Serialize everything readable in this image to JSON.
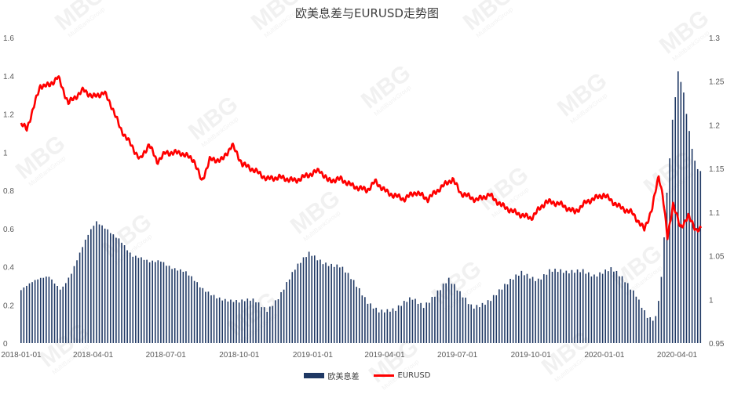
{
  "chart_data": {
    "type": "bar+line",
    "title": "欧美息差与EURUSD走势图",
    "x_ticks": [
      "2018-01-01",
      "2018-04-01",
      "2018-07-01",
      "2018-10-01",
      "2019-01-01",
      "2019-04-01",
      "2019-07-01",
      "2019-10-01",
      "2020-01-01",
      "2020-04-01"
    ],
    "y_left": {
      "ylim": [
        0,
        1.6
      ],
      "ticks": [
        "0",
        "0.2",
        "0.4",
        "0.6",
        "0.8",
        "1",
        "1.2",
        "1.4",
        "1.6"
      ]
    },
    "y_right": {
      "ylim": [
        0.95,
        1.3
      ],
      "ticks": [
        "0.95",
        "1",
        "1.05",
        "1.1",
        "1.15",
        "1.2",
        "1.25",
        "1.3"
      ]
    },
    "grid": false,
    "legend_position": "bottom",
    "colors": {
      "spread": "#1f3864",
      "eurusd": "#ff0000"
    },
    "series": [
      {
        "name": "欧美息差",
        "type": "bar",
        "axis": "left",
        "keypoints": [
          [
            "2018-01-01",
            0.28
          ],
          [
            "2018-01-20",
            0.32
          ],
          [
            "2018-02-05",
            0.35
          ],
          [
            "2018-02-20",
            0.29
          ],
          [
            "2018-03-05",
            0.37
          ],
          [
            "2018-03-25",
            0.55
          ],
          [
            "2018-04-05",
            0.63
          ],
          [
            "2018-04-20",
            0.6
          ],
          [
            "2018-05-05",
            0.55
          ],
          [
            "2018-05-20",
            0.45
          ],
          [
            "2018-06-10",
            0.42
          ],
          [
            "2018-06-25",
            0.44
          ],
          [
            "2018-07-10",
            0.4
          ],
          [
            "2018-07-25",
            0.37
          ],
          [
            "2018-08-15",
            0.28
          ],
          [
            "2018-09-10",
            0.24
          ],
          [
            "2018-10-01",
            0.21
          ],
          [
            "2018-10-20",
            0.22
          ],
          [
            "2018-11-05",
            0.18
          ],
          [
            "2018-11-20",
            0.25
          ],
          [
            "2018-12-10",
            0.38
          ],
          [
            "2018-12-28",
            0.47
          ],
          [
            "2019-01-15",
            0.43
          ],
          [
            "2019-02-05",
            0.4
          ],
          [
            "2019-02-20",
            0.32
          ],
          [
            "2019-03-10",
            0.22
          ],
          [
            "2019-03-25",
            0.18
          ],
          [
            "2019-04-15",
            0.17
          ],
          [
            "2019-05-05",
            0.23
          ],
          [
            "2019-05-20",
            0.2
          ],
          [
            "2019-06-05",
            0.27
          ],
          [
            "2019-06-20",
            0.33
          ],
          [
            "2019-07-05",
            0.25
          ],
          [
            "2019-07-20",
            0.19
          ],
          [
            "2019-08-10",
            0.23
          ],
          [
            "2019-09-01",
            0.3
          ],
          [
            "2019-09-20",
            0.37
          ],
          [
            "2019-10-10",
            0.34
          ],
          [
            "2019-10-25",
            0.38
          ],
          [
            "2019-11-15",
            0.36
          ],
          [
            "2019-12-05",
            0.39
          ],
          [
            "2019-12-20",
            0.36
          ],
          [
            "2020-01-10",
            0.38
          ],
          [
            "2020-01-25",
            0.33
          ],
          [
            "2020-02-10",
            0.26
          ],
          [
            "2020-02-25",
            0.14
          ],
          [
            "2020-03-05",
            0.12
          ],
          [
            "2020-03-12",
            0.3
          ],
          [
            "2020-03-20",
            0.8
          ],
          [
            "2020-03-27",
            1.18
          ],
          [
            "2020-04-03",
            1.43
          ],
          [
            "2020-04-10",
            1.3
          ],
          [
            "2020-04-17",
            1.1
          ],
          [
            "2020-04-24",
            0.95
          ],
          [
            "2020-05-01",
            0.9
          ]
        ]
      },
      {
        "name": "EURUSD",
        "type": "line",
        "axis": "right",
        "keypoints": [
          [
            "2018-01-01",
            1.201
          ],
          [
            "2018-01-08",
            1.195
          ],
          [
            "2018-01-25",
            1.245
          ],
          [
            "2018-02-05",
            1.245
          ],
          [
            "2018-02-16",
            1.255
          ],
          [
            "2018-03-01",
            1.225
          ],
          [
            "2018-03-20",
            1.24
          ],
          [
            "2018-04-01",
            1.232
          ],
          [
            "2018-04-15",
            1.237
          ],
          [
            "2018-04-25",
            1.22
          ],
          [
            "2018-05-05",
            1.196
          ],
          [
            "2018-05-15",
            1.182
          ],
          [
            "2018-05-30",
            1.16
          ],
          [
            "2018-06-10",
            1.178
          ],
          [
            "2018-06-20",
            1.158
          ],
          [
            "2018-07-01",
            1.168
          ],
          [
            "2018-07-20",
            1.168
          ],
          [
            "2018-08-05",
            1.16
          ],
          [
            "2018-08-15",
            1.135
          ],
          [
            "2018-08-25",
            1.16
          ],
          [
            "2018-09-10",
            1.16
          ],
          [
            "2018-09-22",
            1.177
          ],
          [
            "2018-10-05",
            1.155
          ],
          [
            "2018-10-20",
            1.148
          ],
          [
            "2018-11-05",
            1.138
          ],
          [
            "2018-11-20",
            1.14
          ],
          [
            "2018-12-10",
            1.136
          ],
          [
            "2018-12-25",
            1.142
          ],
          [
            "2019-01-10",
            1.148
          ],
          [
            "2019-01-20",
            1.136
          ],
          [
            "2019-02-05",
            1.138
          ],
          [
            "2019-02-20",
            1.13
          ],
          [
            "2019-03-10",
            1.125
          ],
          [
            "2019-03-20",
            1.135
          ],
          [
            "2019-04-05",
            1.122
          ],
          [
            "2019-04-25",
            1.115
          ],
          [
            "2019-05-10",
            1.123
          ],
          [
            "2019-05-25",
            1.115
          ],
          [
            "2019-06-10",
            1.128
          ],
          [
            "2019-06-25",
            1.138
          ],
          [
            "2019-07-05",
            1.122
          ],
          [
            "2019-07-25",
            1.114
          ],
          [
            "2019-08-10",
            1.12
          ],
          [
            "2019-08-25",
            1.108
          ],
          [
            "2019-09-10",
            1.1
          ],
          [
            "2019-10-01",
            1.093
          ],
          [
            "2019-10-20",
            1.112
          ],
          [
            "2019-11-05",
            1.11
          ],
          [
            "2019-11-25",
            1.1
          ],
          [
            "2019-12-10",
            1.112
          ],
          [
            "2019-12-31",
            1.12
          ],
          [
            "2020-01-20",
            1.106
          ],
          [
            "2020-02-05",
            1.099
          ],
          [
            "2020-02-20",
            1.08
          ],
          [
            "2020-03-01",
            1.105
          ],
          [
            "2020-03-09",
            1.142
          ],
          [
            "2020-03-14",
            1.12
          ],
          [
            "2020-03-20",
            1.07
          ],
          [
            "2020-03-27",
            1.11
          ],
          [
            "2020-04-05",
            1.082
          ],
          [
            "2020-04-15",
            1.095
          ],
          [
            "2020-04-25",
            1.08
          ],
          [
            "2020-05-01",
            1.08
          ]
        ]
      }
    ]
  },
  "legend": {
    "series_1": "欧美息差",
    "series_2": "EURUSD"
  },
  "watermark": {
    "brand": "MBG",
    "sub": "MultiBankGroup"
  }
}
